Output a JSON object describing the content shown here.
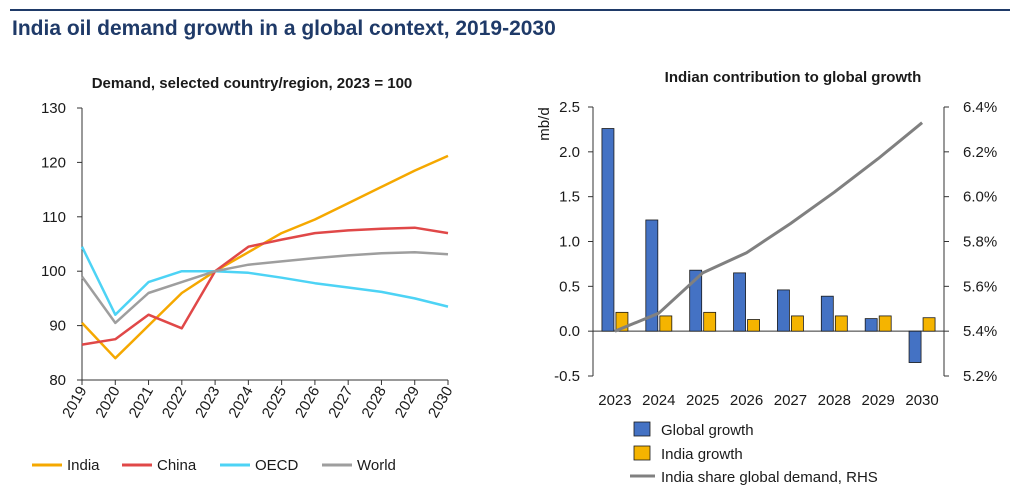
{
  "page": {
    "title": "India oil demand growth in a global context, 2019-2030"
  },
  "chart_data": [
    {
      "type": "line",
      "title": "Demand, selected country/region, 2023 = 100",
      "xlabel": "",
      "ylabel": "",
      "categories": [
        "2019",
        "2020",
        "2021",
        "2022",
        "2023",
        "2024",
        "2025",
        "2026",
        "2027",
        "2028",
        "2029",
        "2030"
      ],
      "ylim": [
        80,
        130
      ],
      "yticks": [
        80,
        90,
        100,
        110,
        120,
        130
      ],
      "legend": "bottom",
      "series": [
        {
          "name": "India",
          "color": "#f5a800",
          "values": [
            90.5,
            84,
            90,
            96,
            100,
            103.5,
            107,
            109.5,
            112.5,
            115.5,
            118.5,
            121.2
          ]
        },
        {
          "name": "China",
          "color": "#e04848",
          "values": [
            86.5,
            87.5,
            92,
            89.5,
            100,
            104.5,
            105.8,
            107,
            107.5,
            107.8,
            108,
            107
          ]
        },
        {
          "name": "OECD",
          "color": "#4dd3f5",
          "values": [
            104.5,
            92,
            98,
            100,
            100,
            99.7,
            98.8,
            97.8,
            97,
            96.2,
            95,
            93.5
          ]
        },
        {
          "name": "World",
          "color": "#9e9e9e",
          "values": [
            99,
            90.5,
            96,
            98,
            100,
            101.2,
            101.8,
            102.4,
            102.9,
            103.3,
            103.5,
            103.1
          ]
        }
      ]
    },
    {
      "type": "bar",
      "title": "Indian contribution to global growth",
      "ylabel": "mb/d",
      "y2label": "",
      "categories": [
        "2023",
        "2024",
        "2025",
        "2026",
        "2027",
        "2028",
        "2029",
        "2030"
      ],
      "ylim": [
        -0.5,
        2.5
      ],
      "yticks": [
        "-0.5",
        "0.0",
        "0.5",
        "1.0",
        "1.5",
        "2.0",
        "2.5"
      ],
      "y2lim": [
        5.2,
        6.4
      ],
      "y2ticks": [
        "5.2%",
        "5.4%",
        "5.6%",
        "5.8%",
        "6.0%",
        "6.2%",
        "6.4%"
      ],
      "legend": "bottom",
      "series": [
        {
          "name": "Global growth",
          "kind": "bar",
          "color": "#4472c4",
          "values": [
            2.26,
            1.24,
            0.68,
            0.65,
            0.46,
            0.39,
            0.14,
            -0.35
          ]
        },
        {
          "name": "India growth",
          "kind": "bar",
          "color": "#f5b400",
          "values": [
            0.21,
            0.17,
            0.21,
            0.13,
            0.17,
            0.17,
            0.17,
            0.15
          ]
        },
        {
          "name": "India share global demand, RHS",
          "kind": "line",
          "axis": "right",
          "color": "#808080",
          "values_percent": [
            5.4,
            5.48,
            5.66,
            5.75,
            5.88,
            6.02,
            6.17,
            6.33
          ]
        }
      ]
    }
  ]
}
